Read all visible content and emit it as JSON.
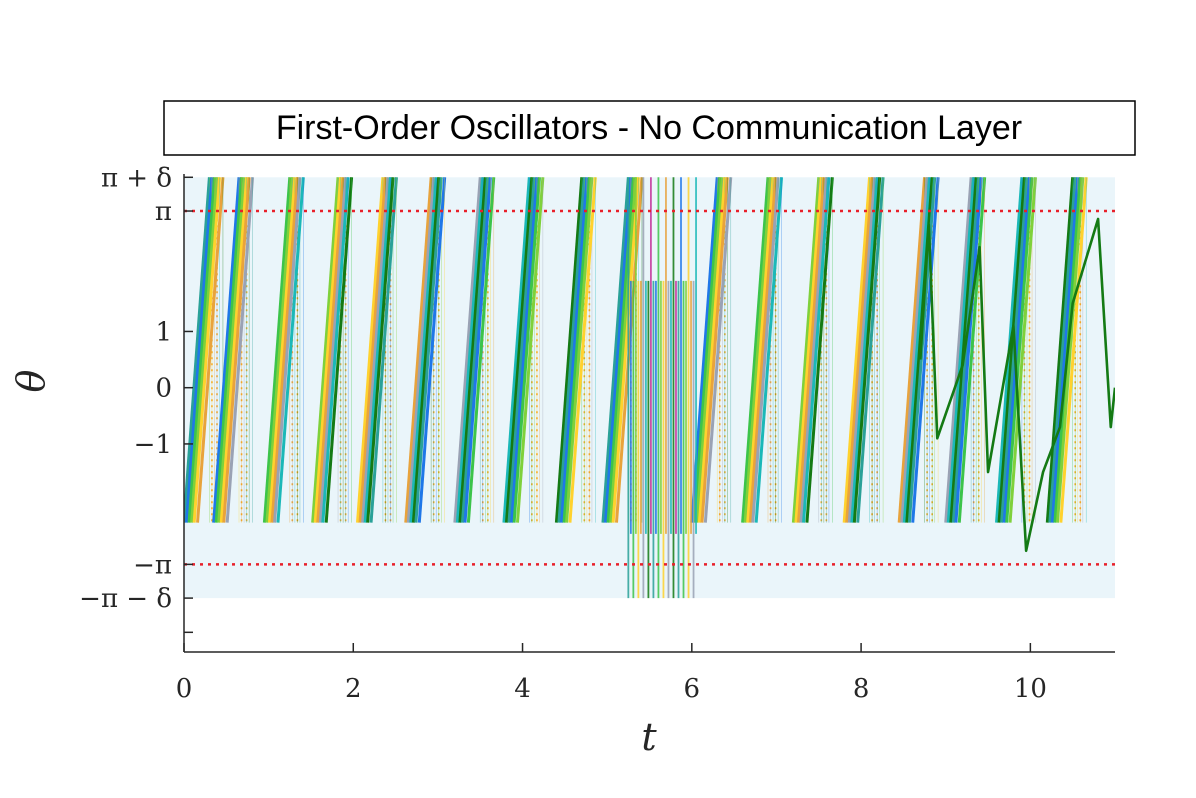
{
  "colors": {
    "band": "#eaf5fa",
    "reference_line": "#e8202a",
    "axis": "#262626",
    "orange_dots": "#f5a623",
    "series_palette": [
      "#2aa198",
      "#1f77e8",
      "#3cc44a",
      "#7fd13b",
      "#ffd22e",
      "#e8a33c",
      "#9aa2b4",
      "#1bb8b8",
      "#147a14",
      "#c2329a"
    ]
  },
  "chart_data": {
    "type": "line",
    "title": "First-Order Oscillators - No Communication Layer",
    "xlabel": "t",
    "ylabel": "θ",
    "xlim": [
      0,
      11
    ],
    "ylim": [
      -4.7,
      3.8
    ],
    "x_ticks": [
      {
        "value": 0,
        "label": "0"
      },
      {
        "value": 2,
        "label": "2"
      },
      {
        "value": 4,
        "label": "4"
      },
      {
        "value": 6,
        "label": "6"
      },
      {
        "value": 8,
        "label": "8"
      },
      {
        "value": 10,
        "label": "10"
      }
    ],
    "y_ticks": [
      {
        "value": 3.7416,
        "label": "π + δ"
      },
      {
        "value": 3.1416,
        "label": "π"
      },
      {
        "value": 1,
        "label": "1"
      },
      {
        "value": 0,
        "label": "0"
      },
      {
        "value": -1,
        "label": "−1"
      },
      {
        "value": -3.1416,
        "label": "−π"
      },
      {
        "value": -3.7416,
        "label": "−π − δ"
      },
      {
        "value": -4.35,
        "label": ""
      }
    ],
    "band": [
      -3.7416,
      3.7416
    ],
    "reference_lines": [
      3.1416,
      -3.1416
    ],
    "wrap_range": [
      -2.4,
      3.7416
    ],
    "cycle_starts": [
      0.0,
      0.35,
      0.95,
      1.52,
      2.05,
      2.62,
      3.2,
      3.78,
      4.4,
      4.95,
      6.0,
      6.6,
      7.2,
      7.8,
      8.45,
      9.0,
      9.6,
      10.2
    ],
    "ramp_duration": 0.3,
    "bundle_offsets": [
      0.0,
      0.03,
      0.06,
      0.09,
      0.12,
      0.16
    ],
    "orange_dot_offsets": [
      0.18,
      0.24
    ],
    "disturbance_window": [
      5.25,
      6.05
    ],
    "green_oscillator": {
      "x": [
        8.7,
        8.8,
        8.9,
        9.2,
        9.4,
        9.5,
        9.8,
        9.95,
        10.15,
        10.35,
        10.5,
        10.8,
        10.95,
        11.0
      ],
      "y": [
        0.5,
        2.9,
        -0.9,
        0.4,
        2.5,
        -1.5,
        1.1,
        -2.9,
        -1.5,
        -0.7,
        1.5,
        3.0,
        -0.7,
        0.0
      ]
    }
  }
}
